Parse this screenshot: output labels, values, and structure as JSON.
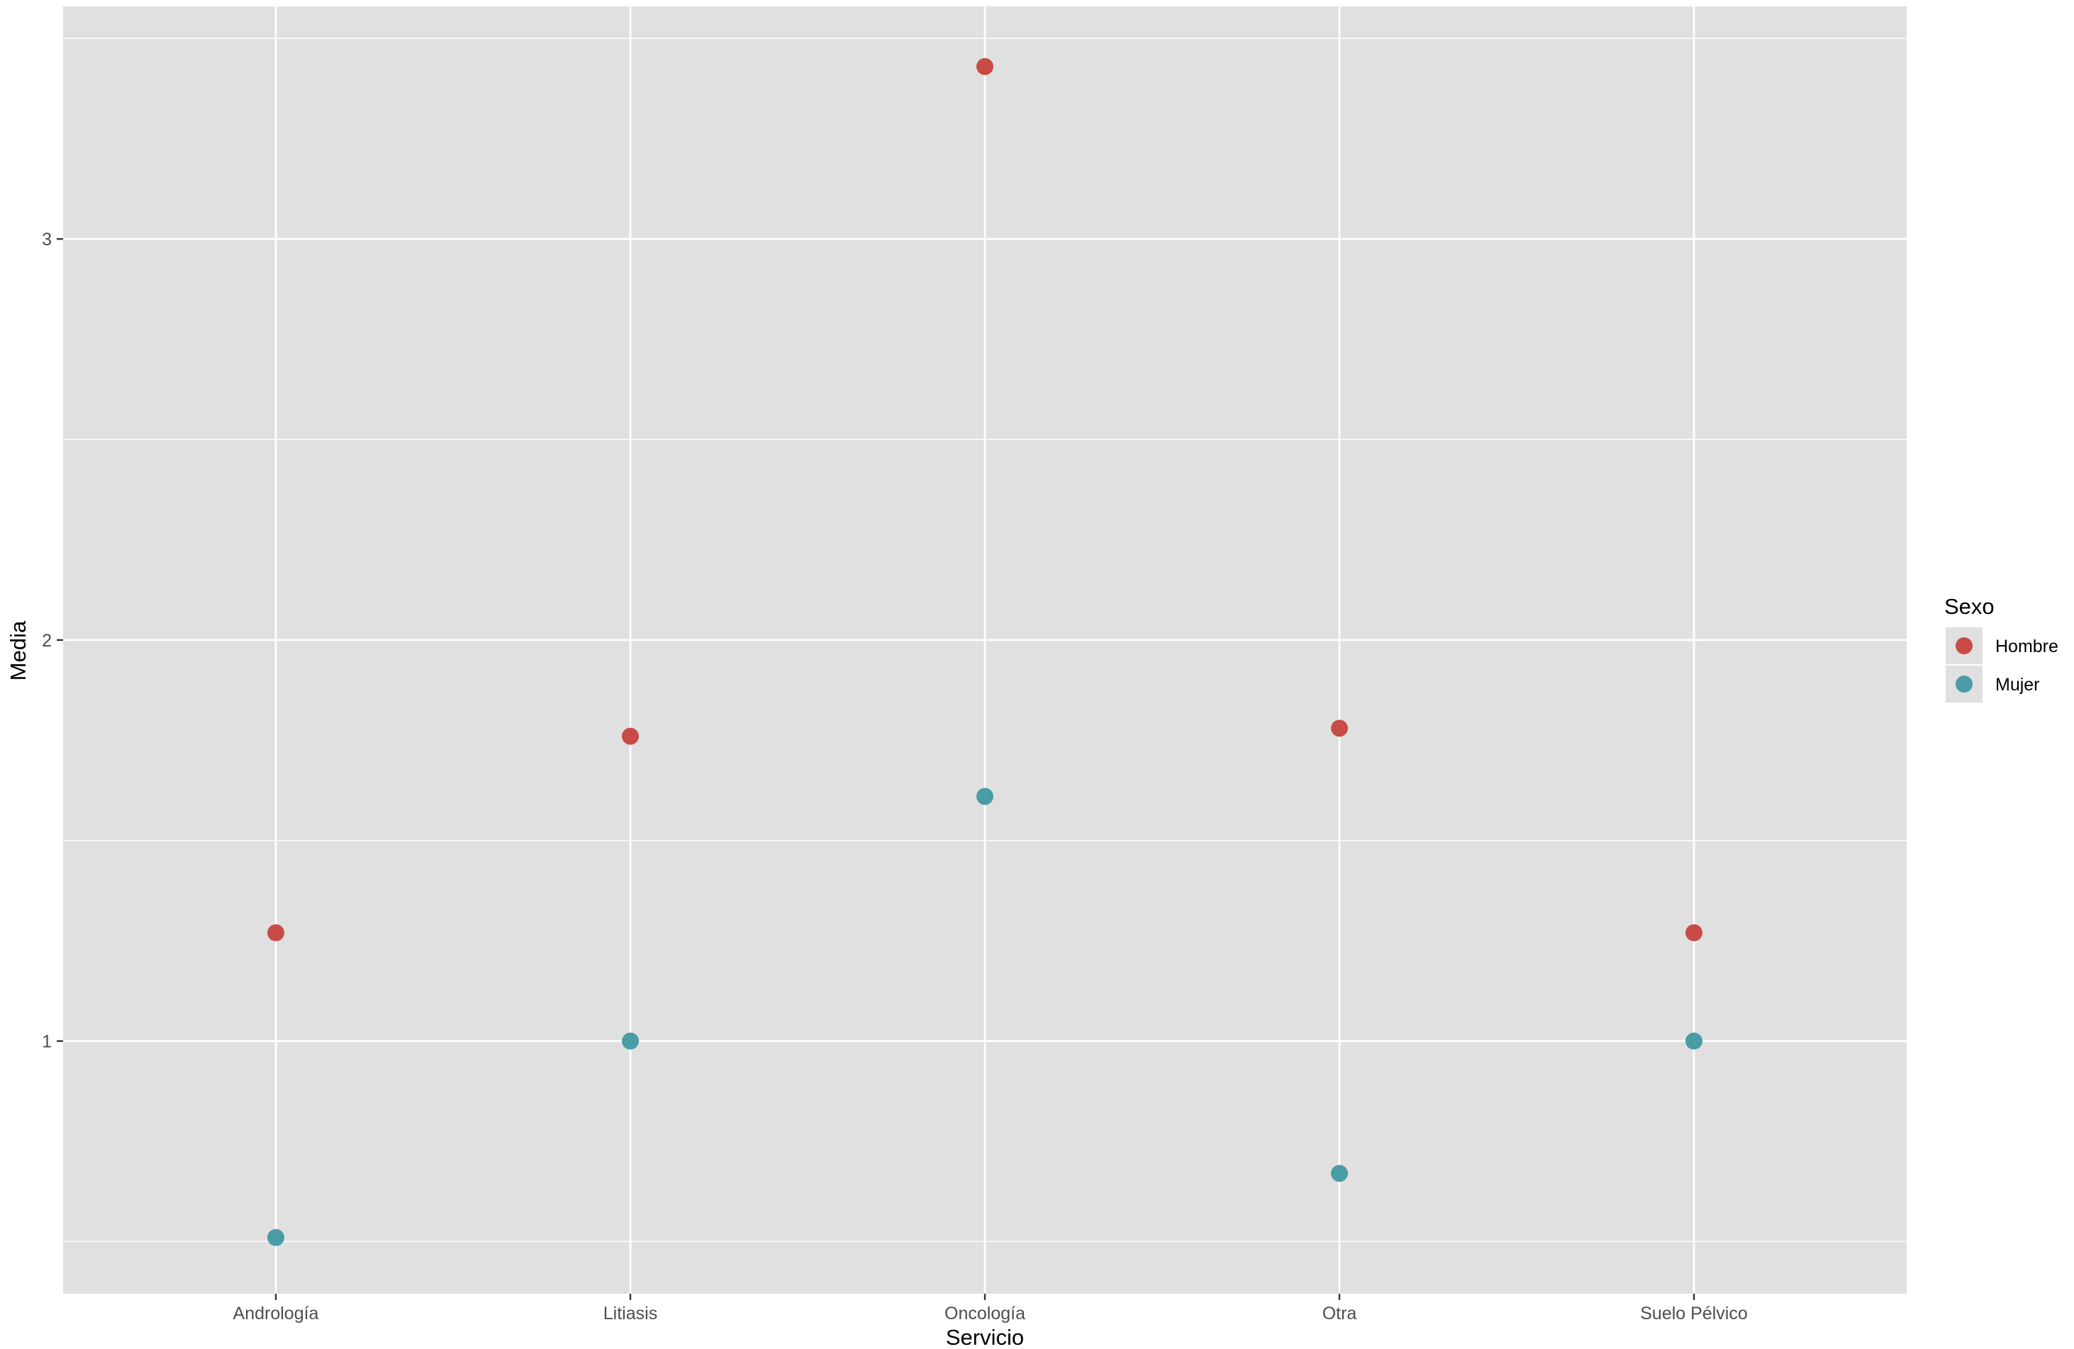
{
  "chart_data": {
    "type": "scatter",
    "title": "",
    "xlabel": "Servicio",
    "ylabel": "Media",
    "categories": [
      "Andrología",
      "Litiasis",
      "Oncología",
      "Otra",
      "Suelo Pélvico"
    ],
    "series": [
      {
        "name": "Hombre",
        "color": "#c94b47",
        "values": [
          1.27,
          1.76,
          3.43,
          1.78,
          1.27
        ]
      },
      {
        "name": "Mujer",
        "color": "#4a9ca6",
        "values": [
          0.51,
          1.0,
          1.61,
          0.67,
          1.0
        ]
      }
    ],
    "ylim": [
      0.37,
      3.58
    ],
    "yticks": [
      1,
      2,
      3
    ],
    "grid": true,
    "legend": {
      "title": "Sexo",
      "position": "right"
    },
    "panel_background": "#e0e0e0",
    "grid_color": "#ffffff"
  }
}
